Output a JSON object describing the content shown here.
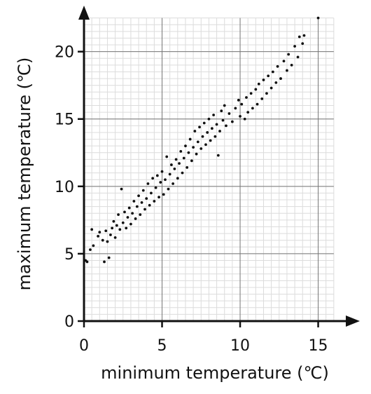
{
  "chart_data": {
    "type": "scatter",
    "xlabel": "minimum temperature (℃)",
    "ylabel": "maximum temperature (℃)",
    "xlim": [
      0,
      16.5
    ],
    "ylim": [
      0,
      23
    ],
    "x_ticks": [
      0,
      5,
      10,
      15
    ],
    "y_ticks": [
      0,
      5,
      10,
      15,
      20
    ],
    "x_tick_labels": [
      "0",
      "5",
      "10",
      "15"
    ],
    "y_tick_labels": [
      "0",
      "5",
      "10",
      "15",
      "20"
    ],
    "minor_grid_step": 0.5,
    "grid": true,
    "point_color": "#111111",
    "series": [
      {
        "points": [
          [
            0.1,
            4.5
          ],
          [
            0.2,
            4.4
          ],
          [
            0.4,
            5.3
          ],
          [
            0.5,
            6.8
          ],
          [
            0.6,
            5.6
          ],
          [
            0.9,
            6.3
          ],
          [
            1.0,
            6.6
          ],
          [
            1.2,
            6.0
          ],
          [
            1.3,
            4.4
          ],
          [
            1.4,
            6.7
          ],
          [
            1.5,
            5.9
          ],
          [
            1.6,
            4.7
          ],
          [
            1.7,
            6.4
          ],
          [
            1.8,
            6.9
          ],
          [
            1.9,
            7.4
          ],
          [
            2.0,
            6.2
          ],
          [
            2.1,
            7.1
          ],
          [
            2.2,
            7.9
          ],
          [
            2.3,
            6.8
          ],
          [
            2.4,
            9.8
          ],
          [
            2.5,
            7.3
          ],
          [
            2.6,
            8.1
          ],
          [
            2.7,
            6.9
          ],
          [
            2.8,
            7.7
          ],
          [
            2.9,
            8.4
          ],
          [
            3.0,
            7.2
          ],
          [
            3.1,
            8.0
          ],
          [
            3.2,
            8.9
          ],
          [
            3.3,
            7.6
          ],
          [
            3.4,
            8.5
          ],
          [
            3.5,
            9.3
          ],
          [
            3.6,
            7.9
          ],
          [
            3.7,
            8.8
          ],
          [
            3.8,
            9.7
          ],
          [
            3.9,
            8.3
          ],
          [
            4.0,
            9.1
          ],
          [
            4.1,
            10.2
          ],
          [
            4.2,
            8.6
          ],
          [
            4.3,
            9.5
          ],
          [
            4.4,
            10.6
          ],
          [
            4.5,
            8.9
          ],
          [
            4.6,
            9.9
          ],
          [
            4.7,
            10.8
          ],
          [
            4.8,
            9.2
          ],
          [
            4.9,
            10.3
          ],
          [
            5.0,
            11.1
          ],
          [
            5.1,
            9.4
          ],
          [
            5.2,
            10.5
          ],
          [
            5.3,
            12.2
          ],
          [
            5.4,
            9.8
          ],
          [
            5.5,
            10.9
          ],
          [
            5.6,
            11.6
          ],
          [
            5.7,
            10.2
          ],
          [
            5.8,
            11.3
          ],
          [
            5.9,
            12.0
          ],
          [
            6.0,
            10.6
          ],
          [
            6.1,
            11.7
          ],
          [
            6.2,
            12.6
          ],
          [
            6.3,
            11.0
          ],
          [
            6.4,
            12.1
          ],
          [
            6.5,
            13.0
          ],
          [
            6.6,
            11.4
          ],
          [
            6.7,
            12.5
          ],
          [
            6.8,
            13.5
          ],
          [
            6.9,
            11.9
          ],
          [
            7.0,
            12.9
          ],
          [
            7.1,
            14.1
          ],
          [
            7.2,
            12.4
          ],
          [
            7.3,
            13.3
          ],
          [
            7.4,
            14.4
          ],
          [
            7.5,
            12.8
          ],
          [
            7.6,
            13.7
          ],
          [
            7.7,
            14.7
          ],
          [
            7.8,
            13.1
          ],
          [
            7.9,
            14.0
          ],
          [
            8.0,
            15.0
          ],
          [
            8.1,
            13.4
          ],
          [
            8.2,
            14.3
          ],
          [
            8.3,
            15.3
          ],
          [
            8.4,
            13.7
          ],
          [
            8.5,
            14.6
          ],
          [
            8.6,
            12.3
          ],
          [
            8.7,
            14.1
          ],
          [
            8.8,
            15.6
          ],
          [
            8.9,
            14.9
          ],
          [
            9.0,
            16.0
          ],
          [
            9.1,
            14.5
          ],
          [
            9.3,
            15.4
          ],
          [
            9.5,
            14.8
          ],
          [
            9.7,
            15.8
          ],
          [
            9.9,
            16.4
          ],
          [
            10.0,
            15.2
          ],
          [
            10.1,
            16.1
          ],
          [
            10.3,
            15.0
          ],
          [
            10.4,
            16.6
          ],
          [
            10.5,
            15.5
          ],
          [
            10.7,
            16.9
          ],
          [
            10.8,
            15.8
          ],
          [
            11.0,
            17.2
          ],
          [
            11.1,
            16.1
          ],
          [
            11.2,
            17.6
          ],
          [
            11.4,
            16.5
          ],
          [
            11.5,
            17.9
          ],
          [
            11.7,
            16.9
          ],
          [
            11.8,
            18.2
          ],
          [
            12.0,
            17.3
          ],
          [
            12.1,
            18.5
          ],
          [
            12.3,
            17.7
          ],
          [
            12.4,
            18.9
          ],
          [
            12.6,
            18.0
          ],
          [
            12.8,
            19.3
          ],
          [
            13.0,
            18.6
          ],
          [
            13.1,
            19.8
          ],
          [
            13.3,
            19.0
          ],
          [
            13.5,
            20.4
          ],
          [
            13.7,
            19.6
          ],
          [
            13.8,
            21.1
          ],
          [
            14.0,
            20.6
          ],
          [
            14.1,
            21.2
          ],
          [
            15.0,
            22.5
          ]
        ]
      }
    ]
  }
}
